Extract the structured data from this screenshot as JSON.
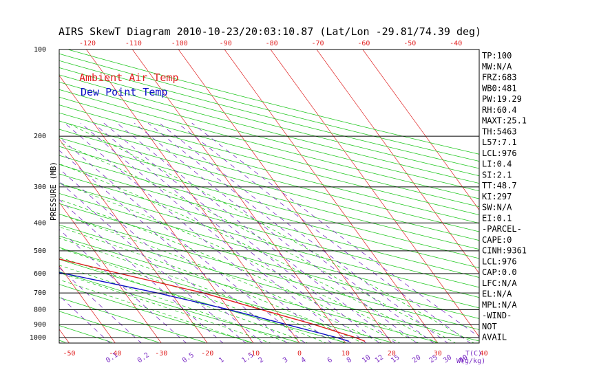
{
  "chart_data": {
    "type": "line",
    "title": "AIRS SkewT Diagram 2010-10-23/20:03:10.87 (Lat/Lon -29.81/74.39 deg)",
    "ylabel": "PRESSURE (MB)",
    "xlabel_bottom_unit": "T(C)",
    "xlabel_mixing_unit": "W(g/kg)",
    "ylim": [
      1050,
      100
    ],
    "y_scale": "log",
    "pressure_ticks": [
      100,
      200,
      300,
      400,
      500,
      600,
      700,
      800,
      900,
      1000
    ],
    "temp_ticks_bottom": [
      -50,
      -40,
      -30,
      -20,
      -10,
      0,
      10,
      20,
      30,
      40
    ],
    "temp_ticks_top": [
      -120,
      -110,
      -100,
      -90,
      -80,
      -70,
      -60,
      -50,
      -40
    ],
    "mixing_ratio_labels": [
      "0.1",
      "0.2",
      "0.5",
      "1",
      "1.5",
      "2",
      "3",
      "4",
      "6",
      "8",
      "10",
      "12",
      "15",
      "20",
      "25",
      "30",
      "40",
      "50"
    ],
    "mixing_ratio_values": [
      0.1,
      0.2,
      0.5,
      1,
      1.5,
      2,
      3,
      4,
      6,
      8,
      10,
      12,
      15,
      20,
      25,
      30,
      40,
      50
    ],
    "legend": [
      "Ambient Air Temp",
      "Dew Point Temp"
    ],
    "series": [
      {
        "name": "Ambient Air Temp",
        "color": "#e02020",
        "points": [
          [
            100,
            -59
          ],
          [
            120,
            -61
          ],
          [
            150,
            -64
          ],
          [
            200,
            -67
          ],
          [
            250,
            -71
          ],
          [
            300,
            -75
          ],
          [
            400,
            -64
          ],
          [
            500,
            -45
          ],
          [
            600,
            -28
          ],
          [
            700,
            -13
          ],
          [
            800,
            -3
          ],
          [
            900,
            6
          ],
          [
            1000,
            13
          ],
          [
            1030,
            14.5
          ]
        ]
      },
      {
        "name": "Dew Point Temp",
        "color": "#1010c8",
        "points": [
          [
            100,
            -87
          ],
          [
            120,
            -91
          ],
          [
            150,
            -97
          ],
          [
            200,
            -104
          ],
          [
            250,
            -110
          ],
          [
            300,
            -101
          ],
          [
            400,
            -84
          ],
          [
            500,
            -63
          ],
          [
            600,
            -40
          ],
          [
            700,
            -23
          ],
          [
            800,
            -10
          ],
          [
            900,
            0
          ],
          [
            1000,
            9
          ],
          [
            1030,
            11
          ]
        ]
      }
    ],
    "indices": [
      "TP:100",
      "MW:N/A",
      "FRZ:683",
      "WB0:481",
      "PW:19.29",
      "RH:60.4",
      "MAXT:25.1",
      "TH:5463",
      "L57:7.1",
      "LCL:976",
      "LI:0.4",
      "SI:2.1",
      "TT:48.7",
      "KI:297",
      "SW:N/A",
      "EI:0.1",
      "-PARCEL-",
      "CAPE:0",
      "CINH:9361",
      "LCL:976",
      "CAP:0.0",
      "LFC:N/A",
      "EL:N/A",
      "MPL:N/A",
      "-WIND-",
      "NOT",
      "AVAIL"
    ],
    "colors": {
      "isotherm": "#e02020",
      "dry_adiabat": "#22c822",
      "moist_adiabat": "#22c822",
      "mixing_ratio": "#7a2cc4",
      "tick_red": "#e02020",
      "tick_purple": "#7a2cc4"
    }
  }
}
